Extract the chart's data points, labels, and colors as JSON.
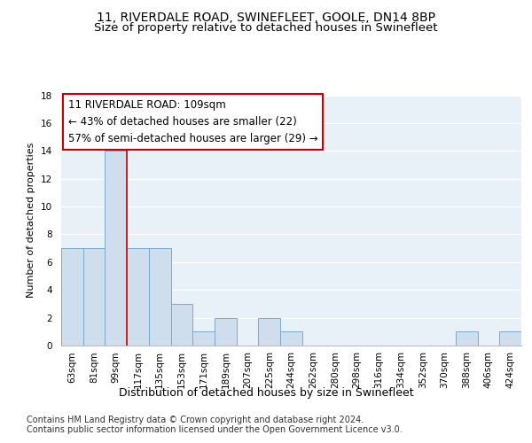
{
  "title1": "11, RIVERDALE ROAD, SWINEFLEET, GOOLE, DN14 8BP",
  "title2": "Size of property relative to detached houses in Swinefleet",
  "xlabel": "Distribution of detached houses by size in Swinefleet",
  "ylabel": "Number of detached properties",
  "categories": [
    "63sqm",
    "81sqm",
    "99sqm",
    "117sqm",
    "135sqm",
    "153sqm",
    "171sqm",
    "189sqm",
    "207sqm",
    "225sqm",
    "244sqm",
    "262sqm",
    "280sqm",
    "298sqm",
    "316sqm",
    "334sqm",
    "352sqm",
    "370sqm",
    "388sqm",
    "406sqm",
    "424sqm"
  ],
  "values": [
    7,
    7,
    14,
    7,
    7,
    3,
    1,
    2,
    0,
    2,
    1,
    0,
    0,
    0,
    0,
    0,
    0,
    0,
    1,
    0,
    1
  ],
  "bar_color": "#cfdeed",
  "bar_edge_color": "#7aaac8",
  "vline_x": 2.5,
  "vline_color": "#cc0000",
  "annotation_line1": "11 RIVERDALE ROAD: 109sqm",
  "annotation_line2": "← 43% of detached houses are smaller (22)",
  "annotation_line3": "57% of semi-detached houses are larger (29) →",
  "ylim": [
    0,
    18
  ],
  "yticks": [
    0,
    2,
    4,
    6,
    8,
    10,
    12,
    14,
    16,
    18
  ],
  "background_color": "#e8f0f8",
  "grid_color": "#ffffff",
  "footer_line1": "Contains HM Land Registry data © Crown copyright and database right 2024.",
  "footer_line2": "Contains public sector information licensed under the Open Government Licence v3.0.",
  "title1_fontsize": 10,
  "title2_fontsize": 9.5,
  "xlabel_fontsize": 9,
  "ylabel_fontsize": 8,
  "tick_fontsize": 7.5,
  "annotation_fontsize": 8.5,
  "footer_fontsize": 7
}
